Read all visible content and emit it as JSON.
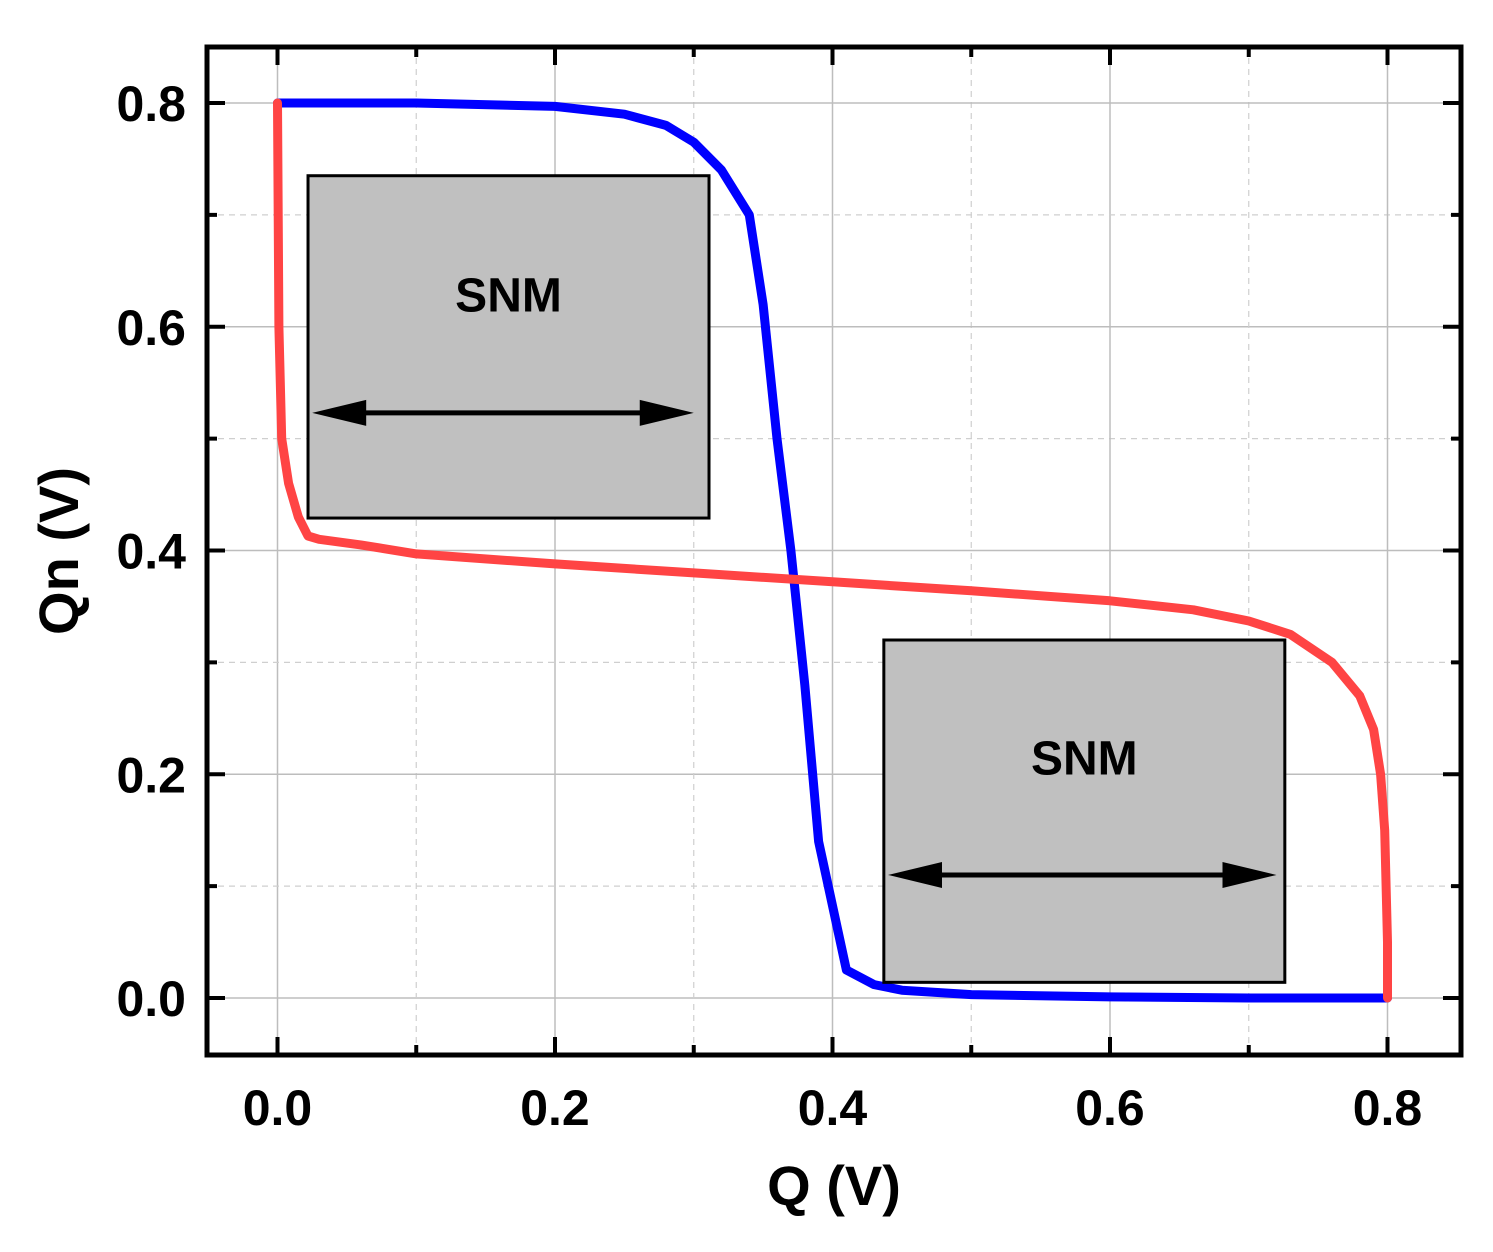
{
  "chart_data": {
    "type": "line",
    "title": "",
    "xlabel": "Q (V)",
    "ylabel": "Qn (V)",
    "xlim": [
      -0.05,
      0.85
    ],
    "ylim": [
      -0.05,
      0.85
    ],
    "xticks": [
      0.0,
      0.2,
      0.4,
      0.6,
      0.8
    ],
    "yticks": [
      0.0,
      0.2,
      0.4,
      0.6,
      0.8
    ],
    "xtick_labels": [
      "0.0",
      "0.2",
      "0.4",
      "0.6",
      "0.8"
    ],
    "ytick_labels": [
      "0.0",
      "0.2",
      "0.4",
      "0.6",
      "0.8"
    ],
    "grid": true,
    "series": [
      {
        "name": "blue-curve",
        "color": "#0000ff",
        "x": [
          0.0,
          0.1,
          0.2,
          0.25,
          0.28,
          0.3,
          0.32,
          0.34,
          0.35,
          0.36,
          0.37,
          0.38,
          0.39,
          0.41,
          0.43,
          0.45,
          0.5,
          0.6,
          0.7,
          0.8
        ],
        "y": [
          0.8,
          0.8,
          0.797,
          0.79,
          0.78,
          0.765,
          0.74,
          0.7,
          0.62,
          0.5,
          0.4,
          0.28,
          0.14,
          0.025,
          0.012,
          0.007,
          0.003,
          0.001,
          0.0,
          0.0
        ]
      },
      {
        "name": "red-curve",
        "color": "#ff4444",
        "x": [
          0.0,
          0.0005,
          0.001,
          0.003,
          0.008,
          0.015,
          0.022,
          0.03,
          0.06,
          0.1,
          0.2,
          0.3,
          0.4,
          0.5,
          0.6,
          0.66,
          0.7,
          0.73,
          0.76,
          0.78,
          0.79,
          0.795,
          0.798,
          0.8,
          0.8
        ],
        "y": [
          0.8,
          0.7,
          0.6,
          0.5,
          0.46,
          0.43,
          0.413,
          0.41,
          0.405,
          0.397,
          0.388,
          0.38,
          0.372,
          0.364,
          0.355,
          0.347,
          0.337,
          0.325,
          0.3,
          0.27,
          0.24,
          0.2,
          0.15,
          0.05,
          0.0
        ]
      }
    ],
    "annotations": [
      {
        "text": "SNM",
        "box_x": [
          0.022,
          0.311
        ],
        "box_y": [
          0.429,
          0.735
        ],
        "arrow_x": [
          0.025,
          0.3
        ],
        "arrow_y": 0.523,
        "fill": "#c0c0c0"
      },
      {
        "text": "SNM",
        "box_x": [
          0.437,
          0.726
        ],
        "box_y": [
          0.014,
          0.32
        ],
        "arrow_x": [
          0.44,
          0.72
        ],
        "arrow_y": 0.11,
        "fill": "#c0c0c0"
      }
    ]
  }
}
